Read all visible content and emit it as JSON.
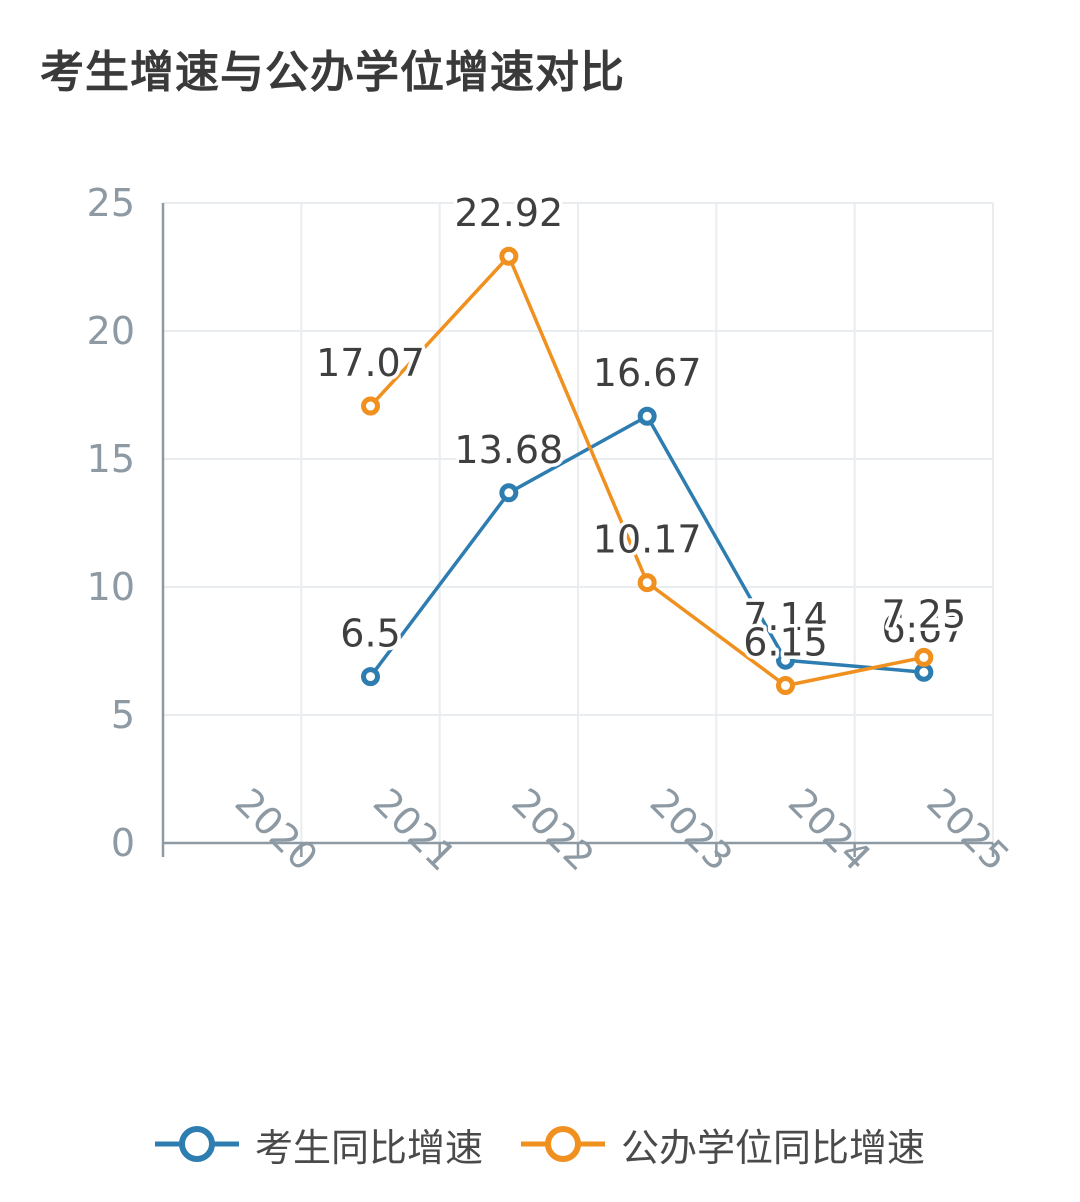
{
  "title": "考生增速与公办学位增速对比",
  "chart_data": {
    "type": "line",
    "title": "考生增速与公办学位增速对比",
    "x": [
      "2020",
      "2021",
      "2022",
      "2023",
      "2024",
      "2025"
    ],
    "ylim": [
      0,
      25
    ],
    "yticks": [
      0,
      5,
      10,
      15,
      20,
      25
    ],
    "grid": true,
    "legend_position": "bottom",
    "series": [
      {
        "name": "考生同比增速",
        "color": "#2e7db1",
        "values": [
          null,
          6.5,
          13.68,
          16.67,
          7.14,
          6.67
        ]
      },
      {
        "name": "公办学位同比增速",
        "color": "#f0901e",
        "values": [
          null,
          17.07,
          22.92,
          10.17,
          6.15,
          7.25
        ]
      }
    ]
  }
}
